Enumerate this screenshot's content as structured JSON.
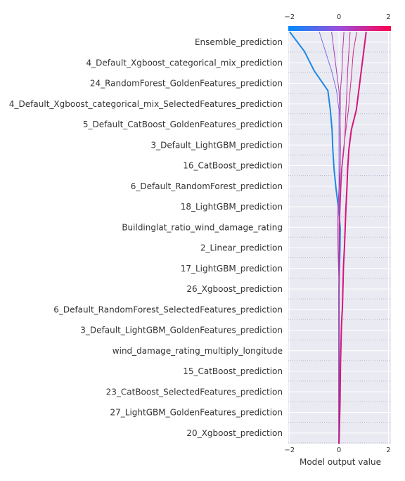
{
  "chart_data": {
    "type": "line",
    "chart_kind": "shap-decision-plot",
    "xlabel": "Model output value",
    "xlim": [
      -2.05,
      2.1
    ],
    "xticks": [
      -2,
      0,
      2
    ],
    "xtick_labels": [
      "−2",
      "0",
      "2"
    ],
    "colorbar": {
      "from": "#008bfb",
      "to": "#ff0052",
      "mid": "#9d4edd"
    },
    "features": [
      "Ensemble_prediction",
      "4_Default_Xgboost_categorical_mix_prediction",
      "24_RandomForest_GoldenFeatures_prediction",
      "4_Default_Xgboost_categorical_mix_SelectedFeatures_prediction",
      "5_Default_CatBoost_GoldenFeatures_prediction",
      "3_Default_LightGBM_prediction",
      "16_CatBoost_prediction",
      "6_Default_RandomForest_prediction",
      "18_LightGBM_prediction",
      "Buildinglat_ratio_wind_damage_rating",
      "2_Linear_prediction",
      "17_LightGBM_prediction",
      "26_Xgboost_prediction",
      "6_Default_RandomForest_SelectedFeatures_prediction",
      "3_Default_LightGBM_GoldenFeatures_prediction",
      "wind_damage_rating_multiply_longitude",
      "15_CatBoost_prediction",
      "23_CatBoost_SelectedFeatures_prediction",
      "27_LightGBM_GoldenFeatures_prediction",
      "20_Xgboost_prediction"
    ],
    "series": [
      {
        "color": "#1e88e5",
        "width": 2.0,
        "values": [
          0.0,
          0.0,
          0.0,
          0.0,
          0.0,
          0.0,
          0.0,
          0.0,
          0.0,
          0.02,
          0.04,
          0.05,
          -0.02,
          -0.12,
          -0.2,
          -0.25,
          -0.28,
          -0.35,
          -0.45,
          -1.0,
          -1.4,
          -2.0
        ]
      },
      {
        "color": "#7b6fe0",
        "width": 1.0,
        "values": [
          0.0,
          0.0,
          0.0,
          0.0,
          0.0,
          0.0,
          0.0,
          0.0,
          0.01,
          0.01,
          0.0,
          0.0,
          0.0,
          0.0,
          0.0,
          0.0,
          0.0,
          0.0,
          -0.1,
          -0.3,
          -0.55,
          -0.8
        ]
      },
      {
        "color": "#a93ab8",
        "width": 1.0,
        "values": [
          0.0,
          0.0,
          0.0,
          0.0,
          0.0,
          0.0,
          0.0,
          0.0,
          0.0,
          -0.02,
          -0.04,
          -0.05,
          -0.04,
          0.0,
          0.04,
          0.06,
          0.05,
          0.03,
          0.0,
          -0.1,
          -0.2,
          -0.3
        ]
      },
      {
        "color": "#b93aa5",
        "width": 1.0,
        "values": [
          0.0,
          0.0,
          0.0,
          0.0,
          0.0,
          0.0,
          0.0,
          0.0,
          0.0,
          0.0,
          0.0,
          0.0,
          0.02,
          0.04,
          0.05,
          0.05,
          0.04,
          0.05,
          0.06,
          0.12,
          0.15,
          0.2
        ]
      },
      {
        "color": "#c22a98",
        "width": 1.0,
        "values": [
          0.0,
          0.0,
          0.0,
          0.0,
          0.0,
          0.0,
          0.0,
          0.0,
          0.0,
          0.0,
          0.01,
          0.02,
          0.05,
          0.08,
          0.12,
          0.2,
          0.25,
          0.28,
          0.32,
          0.35,
          0.4,
          0.45
        ]
      },
      {
        "color": "#cc2a85",
        "width": 1.0,
        "values": [
          0.0,
          0.0,
          0.0,
          0.0,
          0.0,
          0.0,
          0.0,
          0.0,
          0.0,
          0.0,
          0.0,
          0.0,
          0.03,
          0.06,
          0.1,
          0.18,
          0.28,
          0.38,
          0.45,
          0.52,
          0.58,
          0.72
        ]
      },
      {
        "color": "#d6157a",
        "width": 2.0,
        "values": [
          0.0,
          0.02,
          0.04,
          0.05,
          0.06,
          0.08,
          0.1,
          0.14,
          0.16,
          0.18,
          0.22,
          0.25,
          0.28,
          0.32,
          0.35,
          0.4,
          0.5,
          0.7,
          0.8,
          0.9,
          1.0,
          1.1
        ]
      }
    ]
  }
}
